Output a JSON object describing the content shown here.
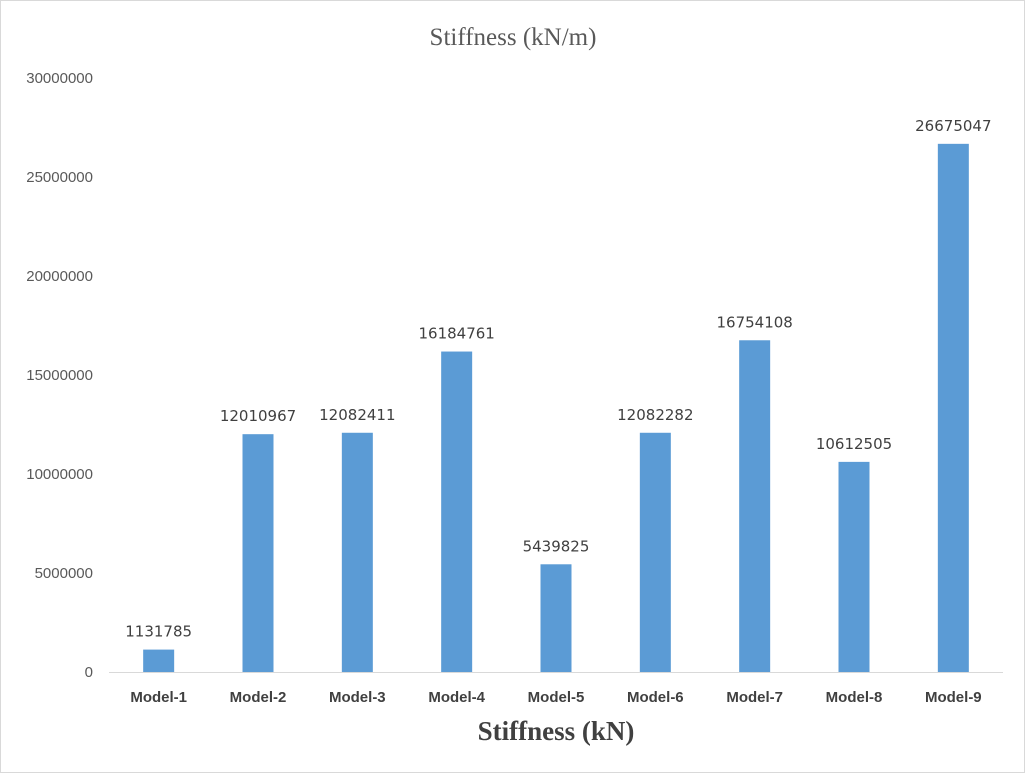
{
  "chart_data": {
    "type": "bar",
    "title": "Stiffness  (kN/m)",
    "xlabel": "Stiffness (kN)",
    "ylabel": "",
    "categories": [
      "Model-1",
      "Model-2",
      "Model-3",
      "Model-4",
      "Model-5",
      "Model-6",
      "Model-7",
      "Model-8",
      "Model-9"
    ],
    "values": [
      1131785,
      12010967,
      12082411,
      16184761,
      5439825,
      12082282,
      16754108,
      10612505,
      26675047
    ],
    "data_labels": [
      "1131785",
      "12010967",
      "12082411",
      "16184761",
      "5439825",
      "12082282",
      "16754108",
      "10612505",
      "26675047"
    ],
    "y_ticks": [
      "0",
      "5000000",
      "10000000",
      "15000000",
      "20000000",
      "25000000",
      "30000000"
    ],
    "ylim": [
      0,
      30000000
    ],
    "grid": false,
    "legend": "none",
    "bar_color": "#5b9bd5",
    "axis_color": "#d9d9d9"
  }
}
